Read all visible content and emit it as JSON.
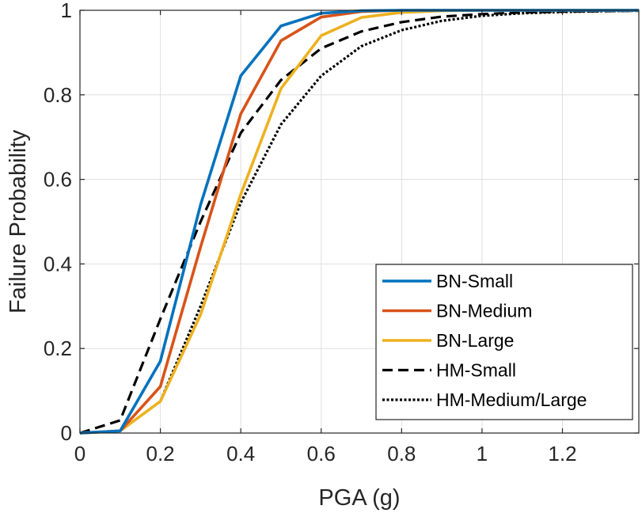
{
  "chart_data": {
    "type": "line",
    "xlabel": "PGA (g)",
    "ylabel": "Failure Probability",
    "xlim": [
      0,
      1.39
    ],
    "ylim": [
      0,
      1
    ],
    "xticks": [
      0,
      0.2,
      0.4,
      0.6,
      0.8,
      1,
      1.2
    ],
    "xtick_labels": [
      "0",
      "0.2",
      "0.4",
      "0.6",
      "0.8",
      "1",
      "1.2"
    ],
    "yticks": [
      0,
      0.2,
      0.4,
      0.6,
      0.8,
      1
    ],
    "ytick_labels": [
      "0",
      "0.2",
      "0.4",
      "0.6",
      "0.8",
      "1"
    ],
    "grid": true,
    "legend_position": "bottom-right",
    "x": [
      0,
      0.1,
      0.2,
      0.3,
      0.4,
      0.5,
      0.6,
      0.7,
      0.8,
      0.9,
      1.0,
      1.1,
      1.2,
      1.3,
      1.39
    ],
    "series": [
      {
        "name": "BN-Small",
        "color": "#0072BD",
        "style": "solid",
        "values": [
          0,
          0.005,
          0.17,
          0.54,
          0.845,
          0.963,
          0.993,
          0.999,
          1.0,
          1.0,
          1.0,
          1.0,
          1.0,
          1.0,
          1.0
        ]
      },
      {
        "name": "BN-Medium",
        "color": "#D95319",
        "style": "solid",
        "values": [
          0,
          0.005,
          0.11,
          0.44,
          0.755,
          0.928,
          0.984,
          0.997,
          1.0,
          1.0,
          1.0,
          1.0,
          1.0,
          1.0,
          1.0
        ]
      },
      {
        "name": "BN-Large",
        "color": "#EDB120",
        "style": "solid",
        "values": [
          0,
          0.005,
          0.075,
          0.28,
          0.565,
          0.815,
          0.94,
          0.983,
          0.995,
          0.999,
          1.0,
          1.0,
          1.0,
          1.0,
          1.0
        ]
      },
      {
        "name": "HM-Small",
        "color": "#000000",
        "style": "dashed",
        "values": [
          0,
          0.03,
          0.27,
          0.5,
          0.71,
          0.835,
          0.91,
          0.95,
          0.972,
          0.985,
          0.991,
          0.995,
          0.997,
          0.998,
          0.999
        ]
      },
      {
        "name": "HM-Medium/Large",
        "color": "#000000",
        "style": "dotted",
        "values": [
          0,
          0.005,
          0.075,
          0.3,
          0.545,
          0.73,
          0.845,
          0.915,
          0.953,
          0.975,
          0.987,
          0.993,
          0.996,
          0.998,
          0.999
        ]
      }
    ]
  }
}
